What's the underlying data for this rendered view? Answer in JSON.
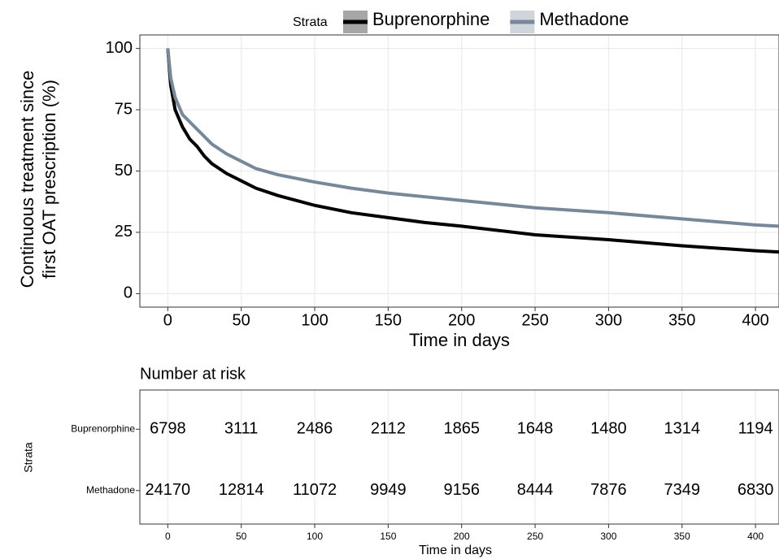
{
  "chart_data": [
    {
      "type": "line",
      "ylabel": [
        "Continuous treatment since",
        "first OAT prescription (%)"
      ],
      "xlabel": "Time in days",
      "legend_title": "Strata",
      "x": [
        0,
        2,
        5,
        10,
        15,
        20,
        25,
        30,
        40,
        50,
        60,
        75,
        100,
        125,
        150,
        175,
        200,
        250,
        300,
        350,
        400,
        416
      ],
      "series": [
        {
          "name": "Buprenorphine",
          "color": "#000000",
          "values": [
            100,
            85,
            75,
            68,
            63,
            60,
            56,
            53,
            49,
            46,
            43,
            40,
            36,
            33,
            31,
            29,
            27.5,
            24,
            22,
            19.5,
            17.5,
            17
          ]
        },
        {
          "name": "Methadone",
          "color": "#778899",
          "values": [
            100,
            88,
            80,
            73,
            70,
            67,
            64,
            61,
            57,
            54,
            51,
            48.5,
            45.5,
            43,
            41,
            39.5,
            38,
            35,
            33,
            30.5,
            28,
            27.5
          ]
        }
      ],
      "xlim": [
        -19,
        416
      ],
      "xticks": [
        0,
        50,
        100,
        150,
        200,
        250,
        300,
        350,
        400
      ],
      "ylim": [
        -5.5,
        105.5
      ],
      "yticks": [
        0,
        25,
        50,
        75,
        100
      ],
      "grid": true
    },
    {
      "type": "table",
      "title": "Number at risk",
      "ylabel": "Strata",
      "xlabel": "Time in days",
      "x": [
        0,
        50,
        100,
        150,
        200,
        250,
        300,
        350,
        400
      ],
      "xlim": [
        -19,
        416
      ],
      "xticks": [
        0,
        50,
        100,
        150,
        200,
        250,
        300,
        350,
        400
      ],
      "rows": [
        {
          "name": "Buprenorphine",
          "color": "#000000",
          "values": [
            6798,
            3111,
            2486,
            2112,
            1865,
            1648,
            1480,
            1314,
            1194
          ]
        },
        {
          "name": "Methadone",
          "color": "#778899",
          "values": [
            24170,
            12814,
            11072,
            9949,
            9156,
            8444,
            7876,
            7349,
            6830
          ]
        }
      ]
    }
  ]
}
